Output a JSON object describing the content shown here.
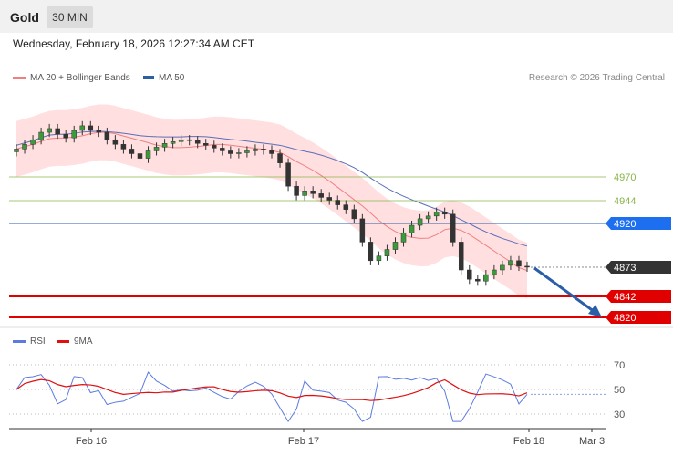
{
  "header": {
    "title": "Gold",
    "timeframe": "30 MIN"
  },
  "datetime": "Wednesday, February 18, 2026 12:27:34 AM CET",
  "legend": {
    "ma20": {
      "label": "MA 20 + Bollinger Bands",
      "color": "#f08080"
    },
    "ma50": {
      "label": "MA 50",
      "color": "#2e5fa3"
    }
  },
  "credit": "Research © 2026 Trading Central",
  "rsi_legend": {
    "rsi": {
      "label": "RSI",
      "color": "#5b7be0"
    },
    "ma9": {
      "label": "9MA",
      "color": "#e01010"
    }
  },
  "price_levels": [
    {
      "label": "4970",
      "value": 4970,
      "kind": "resistance-green",
      "color": "#8ab54a"
    },
    {
      "label": "4944",
      "value": 4944,
      "kind": "resistance-green",
      "color": "#8ab54a"
    },
    {
      "label": "4920",
      "value": 4920,
      "kind": "pivot",
      "color": "#1e6ff0"
    },
    {
      "label": "4873",
      "value": 4873,
      "kind": "last",
      "color": "#333333"
    },
    {
      "label": "4842",
      "value": 4842,
      "kind": "support",
      "color": "#e00000"
    },
    {
      "label": "4820",
      "value": 4820,
      "kind": "support",
      "color": "#e00000"
    }
  ],
  "rsi_levels": [
    {
      "label": "70",
      "value": 70
    },
    {
      "label": "50",
      "value": 50
    },
    {
      "label": "30",
      "value": 30
    }
  ],
  "x_labels": [
    "Feb 16",
    "Feb 17",
    "Feb 18",
    "Mar 3"
  ],
  "forecast_arrow": {
    "direction": "down",
    "color": "#2a5fa8",
    "target_value": 4820
  },
  "chart_data": {
    "type": "candlestick",
    "price_series_close": [
      5000,
      5005,
      5010,
      5018,
      5022,
      5016,
      5012,
      5020,
      5025,
      5020,
      5018,
      5010,
      5005,
      5000,
      4995,
      4990,
      4998,
      5002,
      5006,
      5008,
      5010,
      5009,
      5006,
      5004,
      5001,
      4998,
      4995,
      4996,
      4998,
      5000,
      4999,
      4995,
      4985,
      4960,
      4950,
      4955,
      4952,
      4948,
      4945,
      4940,
      4935,
      4925,
      4900,
      4880,
      4885,
      4892,
      4900,
      4910,
      4918,
      4925,
      4928,
      4932,
      4930,
      4900,
      4870,
      4860,
      4858,
      4865,
      4870,
      4875,
      4880,
      4874,
      4873
    ],
    "rsi_range": [
      20,
      80
    ],
    "y_ticks": [
      4970,
      4944,
      4920,
      4873,
      4842,
      4820
    ]
  }
}
